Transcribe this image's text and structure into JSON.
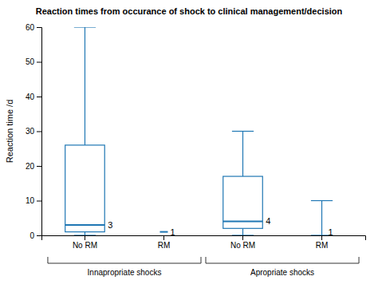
{
  "chart_data": {
    "type": "box",
    "title": "Reaction times from occurance of shock to clinical management/decision",
    "ylabel": "Reaction time /d",
    "groups": [
      {
        "name": "Innapropriate shocks",
        "categories": [
          "No RM",
          "RM"
        ]
      },
      {
        "name": "Apropriate shocks",
        "categories": [
          "No RM",
          "RM"
        ]
      }
    ],
    "boxes": [
      {
        "q1": 1.0,
        "median": 3.0,
        "q3": 26.0,
        "whisker_low": 0.0,
        "whisker_high": 60.0,
        "label": "3",
        "label_y": 3.0
      },
      {
        "median": 1.0,
        "label": "1",
        "label_y": 1.0
      },
      {
        "q1": 2.0,
        "median": 4.0,
        "q3": 17.0,
        "whisker_low": 0.0,
        "whisker_high": 30.0,
        "label": "4",
        "label_y": 4.0
      },
      {
        "whisker_low": 0.0,
        "whisker_high": 10.0,
        "label": "1",
        "label_y": 1.0
      }
    ],
    "ylim": [
      0,
      60
    ],
    "yticks": [
      0,
      10,
      20,
      30,
      40,
      50,
      60
    ],
    "grid": false
  }
}
